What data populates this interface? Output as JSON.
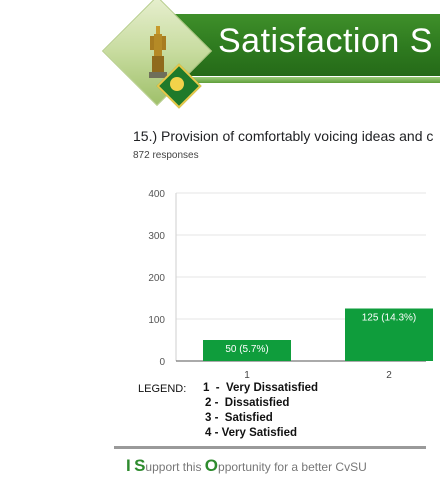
{
  "banner": {
    "title": "Satisfaction S"
  },
  "question": {
    "text": "15.) Provision of comfortably voicing ideas and c",
    "responses": "872 responses"
  },
  "chart_data": {
    "type": "bar",
    "categories": [
      "1",
      "2"
    ],
    "values": [
      50,
      125
    ],
    "data_labels": [
      "50 (5.7%)",
      "125 (14.3%)"
    ],
    "yticks": [
      "0",
      "100",
      "200",
      "300",
      "400"
    ],
    "ylim": [
      0,
      400
    ],
    "grid": true,
    "bar_color": "#0f9d3c"
  },
  "legend": {
    "title": "LEGEND:",
    "items": [
      "1  -  Very Dissatisfied",
      "2 -  Dissatisfied",
      "3 -  Satisfied",
      "4 - Very Satisfied"
    ]
  },
  "footer": {
    "i": "I",
    "s": "S",
    "upport": "upport this ",
    "o": "O",
    "rest": "pportunity for a better CvSU"
  }
}
